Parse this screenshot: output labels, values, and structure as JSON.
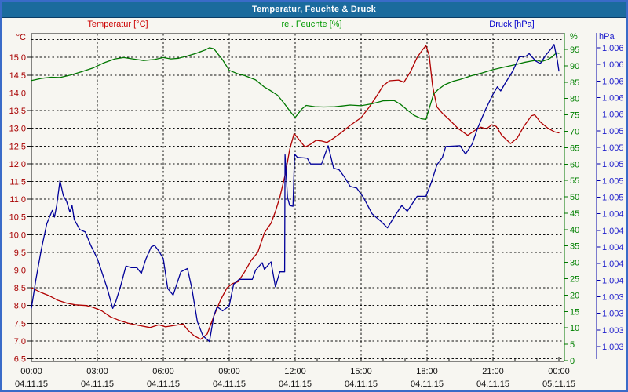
{
  "window": {
    "title": "Temperatur, Feuchte & Druck"
  },
  "legend": {
    "temperature": "Temperatur [°C]",
    "humidity": "rel. Feuchte [%]",
    "pressure": "Druck [hPa]"
  },
  "chart_data": {
    "type": "line",
    "title": "Temperatur, Feuchte & Druck",
    "grid": "dashed-black, vertical every 3h, horizontal every 0.5°C",
    "colors": {
      "temperature": "#b00000",
      "humidity": "#007700",
      "pressure": "#000099",
      "temp_labels": "#a80000",
      "hum_labels": "#008000",
      "pres_labels": "#2222cc"
    },
    "x_axis": {
      "span_hours": [
        0,
        24
      ],
      "major_ticks": [
        {
          "time": "00:00",
          "date": "04.11.15"
        },
        {
          "time": "03:00",
          "date": "04.11.15"
        },
        {
          "time": "06:00",
          "date": "04.11.15"
        },
        {
          "time": "09:00",
          "date": "04.11.15"
        },
        {
          "time": "12:00",
          "date": "04.11.15"
        },
        {
          "time": "15:00",
          "date": "04.11.15"
        },
        {
          "time": "18:00",
          "date": "04.11.15"
        },
        {
          "time": "21:00",
          "date": "04.11.15"
        },
        {
          "time": "00:00",
          "date": "05.11.15"
        }
      ]
    },
    "axes": {
      "temperature": {
        "unit": "°C",
        "min": 6.5,
        "max": 15.5,
        "step": 0.5,
        "labels": [
          "15,0",
          "14,5",
          "14,0",
          "13,5",
          "13,0",
          "12,5",
          "12,0",
          "11,5",
          "11,0",
          "10,5",
          "10,0",
          "9,5",
          "9,0",
          "8,5",
          "8,0",
          "7,5",
          "7,0",
          "6,5"
        ]
      },
      "humidity": {
        "unit": "%",
        "min": 0,
        "max": 100,
        "step": 5,
        "labels": [
          "95",
          "90",
          "85",
          "80",
          "75",
          "70",
          "65",
          "60",
          "55",
          "50",
          "45",
          "40",
          "35",
          "30",
          "25",
          "20",
          "15",
          "10",
          "5",
          "0"
        ]
      },
      "pressure": {
        "unit": "hPa",
        "top_value": 1006.4,
        "bottom_value": 1002.8,
        "step": 0.2,
        "labels": [
          "1.006",
          "1.006",
          "1.006",
          "1.006",
          "1.006",
          "1.005",
          "1.005",
          "1.005",
          "1.005",
          "1.005",
          "1.004",
          "1.004",
          "1.004",
          "1.004",
          "1.004",
          "1.003",
          "1.003",
          "1.003",
          "1.003"
        ]
      }
    },
    "series": [
      {
        "name": "Temperatur",
        "unit": "°C",
        "axis": "temperature",
        "points": [
          [
            0,
            8.5
          ],
          [
            0.4,
            8.38
          ],
          [
            0.8,
            8.28
          ],
          [
            1.2,
            8.15
          ],
          [
            1.6,
            8.07
          ],
          [
            2.0,
            8.02
          ],
          [
            2.5,
            8.0
          ],
          [
            2.8,
            7.95
          ],
          [
            3.2,
            7.85
          ],
          [
            3.6,
            7.68
          ],
          [
            4.0,
            7.58
          ],
          [
            4.4,
            7.5
          ],
          [
            4.9,
            7.44
          ],
          [
            5.4,
            7.38
          ],
          [
            5.8,
            7.46
          ],
          [
            6.1,
            7.4
          ],
          [
            6.5,
            7.44
          ],
          [
            6.9,
            7.48
          ],
          [
            7.1,
            7.32
          ],
          [
            7.4,
            7.15
          ],
          [
            7.7,
            7.05
          ],
          [
            8.0,
            7.2
          ],
          [
            8.3,
            7.7
          ],
          [
            8.6,
            8.15
          ],
          [
            8.9,
            8.5
          ],
          [
            9.15,
            8.62
          ],
          [
            9.4,
            8.67
          ],
          [
            9.7,
            8.95
          ],
          [
            10.0,
            9.28
          ],
          [
            10.3,
            9.5
          ],
          [
            10.6,
            10.05
          ],
          [
            10.9,
            10.32
          ],
          [
            11.1,
            10.65
          ],
          [
            11.3,
            11.05
          ],
          [
            11.55,
            11.7
          ],
          [
            11.75,
            12.4
          ],
          [
            11.95,
            12.85
          ],
          [
            12.15,
            12.7
          ],
          [
            12.45,
            12.47
          ],
          [
            12.7,
            12.55
          ],
          [
            12.95,
            12.66
          ],
          [
            13.2,
            12.64
          ],
          [
            13.45,
            12.6
          ],
          [
            13.75,
            12.72
          ],
          [
            14.1,
            12.88
          ],
          [
            14.5,
            13.08
          ],
          [
            15.0,
            13.3
          ],
          [
            15.35,
            13.58
          ],
          [
            15.7,
            13.9
          ],
          [
            16.0,
            14.2
          ],
          [
            16.3,
            14.34
          ],
          [
            16.7,
            14.36
          ],
          [
            16.95,
            14.3
          ],
          [
            17.25,
            14.6
          ],
          [
            17.55,
            15.0
          ],
          [
            17.8,
            15.22
          ],
          [
            17.95,
            15.33
          ],
          [
            18.1,
            15.05
          ],
          [
            18.25,
            14.2
          ],
          [
            18.45,
            13.6
          ],
          [
            18.7,
            13.42
          ],
          [
            19.0,
            13.25
          ],
          [
            19.4,
            13.0
          ],
          [
            19.85,
            12.8
          ],
          [
            20.2,
            12.95
          ],
          [
            20.45,
            13.03
          ],
          [
            20.7,
            12.98
          ],
          [
            20.95,
            13.1
          ],
          [
            21.15,
            13.05
          ],
          [
            21.4,
            12.8
          ],
          [
            21.8,
            12.57
          ],
          [
            22.1,
            12.72
          ],
          [
            22.4,
            13.05
          ],
          [
            22.75,
            13.35
          ],
          [
            22.9,
            13.38
          ],
          [
            23.15,
            13.18
          ],
          [
            23.5,
            13.0
          ],
          [
            23.8,
            12.9
          ],
          [
            24,
            12.87
          ]
        ]
      },
      {
        "name": "rel. Feuchte",
        "unit": "%",
        "axis": "humidity",
        "points": [
          [
            0,
            85.5
          ],
          [
            0.5,
            86.2
          ],
          [
            0.9,
            86.5
          ],
          [
            1.3,
            86.4
          ],
          [
            1.8,
            87.2
          ],
          [
            2.3,
            88.2
          ],
          [
            2.8,
            89.3
          ],
          [
            3.3,
            90.9
          ],
          [
            3.8,
            92.1
          ],
          [
            4.2,
            92.5
          ],
          [
            4.7,
            92.0
          ],
          [
            5.1,
            91.6
          ],
          [
            5.6,
            91.9
          ],
          [
            6.0,
            92.5
          ],
          [
            6.35,
            92.1
          ],
          [
            6.7,
            92.3
          ],
          [
            7.1,
            93.0
          ],
          [
            7.5,
            93.8
          ],
          [
            7.9,
            94.8
          ],
          [
            8.1,
            95.5
          ],
          [
            8.3,
            95.2
          ],
          [
            8.7,
            91.8
          ],
          [
            9.0,
            88.6
          ],
          [
            9.4,
            87.5
          ],
          [
            9.7,
            87.0
          ],
          [
            10.2,
            85.7
          ],
          [
            10.6,
            83.5
          ],
          [
            10.85,
            82.5
          ],
          [
            11.2,
            81.0
          ],
          [
            11.5,
            78.5
          ],
          [
            11.8,
            75.8
          ],
          [
            12.0,
            74.2
          ],
          [
            12.3,
            76.8
          ],
          [
            12.5,
            77.9
          ],
          [
            12.9,
            77.5
          ],
          [
            13.3,
            77.4
          ],
          [
            13.8,
            77.5
          ],
          [
            14.1,
            77.7
          ],
          [
            14.5,
            78.0
          ],
          [
            15.0,
            77.8
          ],
          [
            15.5,
            78.4
          ],
          [
            16.0,
            79.3
          ],
          [
            16.5,
            79.4
          ],
          [
            16.8,
            78.2
          ],
          [
            17.1,
            76.5
          ],
          [
            17.4,
            74.9
          ],
          [
            17.75,
            73.8
          ],
          [
            17.95,
            73.6
          ],
          [
            18.1,
            77.0
          ],
          [
            18.3,
            81.4
          ],
          [
            18.5,
            82.7
          ],
          [
            18.8,
            84.2
          ],
          [
            19.2,
            85.3
          ],
          [
            19.5,
            85.8
          ],
          [
            20.0,
            86.9
          ],
          [
            20.5,
            87.8
          ],
          [
            21.0,
            88.8
          ],
          [
            21.5,
            89.6
          ],
          [
            22.0,
            90.3
          ],
          [
            22.4,
            91.0
          ],
          [
            22.8,
            91.5
          ],
          [
            23.0,
            91.7
          ],
          [
            23.2,
            91.3
          ],
          [
            23.5,
            91.9
          ],
          [
            23.7,
            92.8
          ],
          [
            23.9,
            94.0
          ],
          [
            24,
            93.8
          ]
        ]
      },
      {
        "name": "Druck",
        "unit": "hPa",
        "axis": "pressure",
        "points": [
          [
            0,
            1003.26
          ],
          [
            0.2,
            1003.6
          ],
          [
            0.45,
            1003.97
          ],
          [
            0.7,
            1004.28
          ],
          [
            0.95,
            1004.44
          ],
          [
            1.05,
            1004.36
          ],
          [
            1.15,
            1004.5
          ],
          [
            1.3,
            1004.8
          ],
          [
            1.45,
            1004.62
          ],
          [
            1.6,
            1004.55
          ],
          [
            1.75,
            1004.42
          ],
          [
            1.85,
            1004.5
          ],
          [
            1.95,
            1004.33
          ],
          [
            2.2,
            1004.21
          ],
          [
            2.45,
            1004.18
          ],
          [
            2.7,
            1004.02
          ],
          [
            3.0,
            1003.86
          ],
          [
            3.2,
            1003.7
          ],
          [
            3.45,
            1003.5
          ],
          [
            3.7,
            1003.26
          ],
          [
            3.85,
            1003.35
          ],
          [
            4.05,
            1003.52
          ],
          [
            4.3,
            1003.77
          ],
          [
            4.55,
            1003.75
          ],
          [
            4.8,
            1003.75
          ],
          [
            5.0,
            1003.68
          ],
          [
            5.2,
            1003.85
          ],
          [
            5.45,
            1004.0
          ],
          [
            5.6,
            1004.02
          ],
          [
            5.8,
            1003.95
          ],
          [
            6.0,
            1003.86
          ],
          [
            6.2,
            1003.5
          ],
          [
            6.45,
            1003.42
          ],
          [
            6.8,
            1003.7
          ],
          [
            7.1,
            1003.74
          ],
          [
            7.3,
            1003.5
          ],
          [
            7.55,
            1003.1
          ],
          [
            7.8,
            1002.93
          ],
          [
            8.1,
            1002.86
          ],
          [
            8.3,
            1003.17
          ],
          [
            8.45,
            1003.28
          ],
          [
            8.7,
            1003.23
          ],
          [
            9.0,
            1003.29
          ],
          [
            9.2,
            1003.55
          ],
          [
            9.45,
            1003.61
          ],
          [
            10.05,
            1003.61
          ],
          [
            10.2,
            1003.72
          ],
          [
            10.5,
            1003.81
          ],
          [
            10.6,
            1003.73
          ],
          [
            10.9,
            1003.82
          ],
          [
            11.1,
            1003.52
          ],
          [
            11.3,
            1003.7
          ],
          [
            11.52,
            1003.7
          ],
          [
            11.54,
            1005.11
          ],
          [
            11.65,
            1004.6
          ],
          [
            11.75,
            1004.5
          ],
          [
            11.9,
            1004.49
          ],
          [
            11.97,
            1005.12
          ],
          [
            12.1,
            1005.08
          ],
          [
            12.55,
            1005.07
          ],
          [
            12.7,
            1005.0
          ],
          [
            13.2,
            1005.0
          ],
          [
            13.5,
            1005.22
          ],
          [
            13.75,
            1004.95
          ],
          [
            14.0,
            1004.93
          ],
          [
            14.25,
            1004.84
          ],
          [
            14.5,
            1004.73
          ],
          [
            14.8,
            1004.71
          ],
          [
            15.1,
            1004.6
          ],
          [
            15.5,
            1004.4
          ],
          [
            15.9,
            1004.31
          ],
          [
            16.2,
            1004.23
          ],
          [
            16.5,
            1004.36
          ],
          [
            16.85,
            1004.5
          ],
          [
            17.1,
            1004.43
          ],
          [
            17.55,
            1004.61
          ],
          [
            17.95,
            1004.61
          ],
          [
            18.2,
            1004.78
          ],
          [
            18.45,
            1004.99
          ],
          [
            18.7,
            1005.08
          ],
          [
            18.85,
            1005.21
          ],
          [
            19.5,
            1005.22
          ],
          [
            19.75,
            1005.12
          ],
          [
            20.05,
            1005.24
          ],
          [
            20.3,
            1005.43
          ],
          [
            20.65,
            1005.65
          ],
          [
            21.0,
            1005.84
          ],
          [
            21.2,
            1005.93
          ],
          [
            21.35,
            1005.88
          ],
          [
            21.55,
            1005.97
          ],
          [
            21.9,
            1006.12
          ],
          [
            22.2,
            1006.29
          ],
          [
            22.5,
            1006.3
          ],
          [
            22.65,
            1006.33
          ],
          [
            22.95,
            1006.24
          ],
          [
            23.15,
            1006.21
          ],
          [
            23.4,
            1006.31
          ],
          [
            23.65,
            1006.39
          ],
          [
            23.78,
            1006.44
          ],
          [
            23.93,
            1006.25
          ],
          [
            24,
            1006.12
          ]
        ]
      }
    ]
  }
}
